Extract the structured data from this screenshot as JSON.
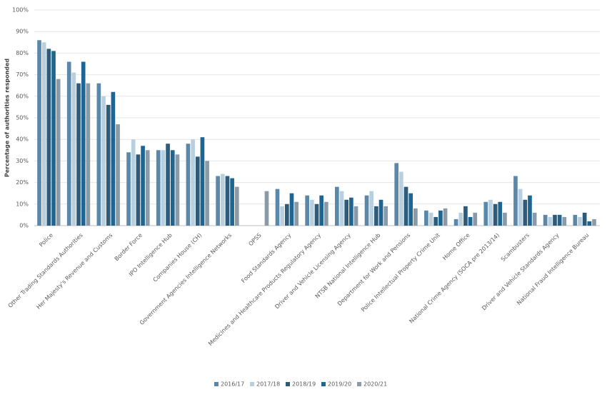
{
  "chart_data": {
    "type": "bar",
    "y_label": "Percentage of authorities responded",
    "categories": [
      "Police",
      "Other Trading Standards Authorities",
      "Her Majesty's Revenue and Customs",
      "Border Force",
      "IPO Intelligence Hub",
      "Companies House (CH)",
      "Government Agencies Intelligence Networks",
      "OPSS",
      "Food Standards Agency",
      "Medicines and Healthcare Products Regulatory Agency",
      "Driver and Vehicle Licensing Agency",
      "NTSB National Intelligence Hub",
      "Department for Work and Pensions",
      "Police Intellectual Property Crime Unit",
      "Home Office",
      "National Crime Agency (SOCA pre 2013/14)",
      "Scambusters",
      "Driver and Vehicle Standards Agency",
      "National Fraud Intelligence Bureau"
    ],
    "series": [
      {
        "name": "2016/17",
        "color": "#5b87a8",
        "values": [
          86,
          76,
          66,
          34,
          35,
          38,
          23,
          null,
          17,
          14,
          18,
          14,
          29,
          7,
          3,
          11,
          23,
          5,
          5
        ]
      },
      {
        "name": "2017/18",
        "color": "#b8cfdf",
        "values": [
          85,
          71,
          60,
          40,
          35,
          40,
          24,
          null,
          9,
          12,
          16,
          16,
          25,
          6,
          6,
          12,
          17,
          4,
          4
        ]
      },
      {
        "name": "2018/19",
        "color": "#2f5b7a",
        "values": [
          82,
          66,
          56,
          33,
          38,
          32,
          23,
          null,
          10,
          10,
          12,
          9,
          18,
          4,
          9,
          10,
          12,
          5,
          6
        ]
      },
      {
        "name": "2019/20",
        "color": "#1f6591",
        "values": [
          81,
          76,
          62,
          37,
          35,
          41,
          22,
          null,
          15,
          14,
          13,
          12,
          15,
          7,
          4,
          11,
          14,
          5,
          2
        ]
      },
      {
        "name": "2020/21",
        "color": "#8a9aa6",
        "values": [
          68,
          66,
          47,
          35,
          33,
          30,
          18,
          16,
          11,
          11,
          9,
          9,
          8,
          8,
          6,
          6,
          6,
          4,
          3
        ]
      }
    ],
    "ylim": [
      0,
      100
    ],
    "yticks": [
      {
        "value": 0,
        "label": "0%"
      },
      {
        "value": 10,
        "label": "10%"
      },
      {
        "value": 20,
        "label": "20%"
      },
      {
        "value": 30,
        "label": "30%"
      },
      {
        "value": 40,
        "label": "40%"
      },
      {
        "value": 50,
        "label": "50%"
      },
      {
        "value": 60,
        "label": "60%"
      },
      {
        "value": 70,
        "label": "70%"
      },
      {
        "value": 80,
        "label": "80%"
      },
      {
        "value": 90,
        "label": "90%"
      },
      {
        "value": 100,
        "label": "100%"
      }
    ],
    "grid": true,
    "legend": "bottom"
  }
}
